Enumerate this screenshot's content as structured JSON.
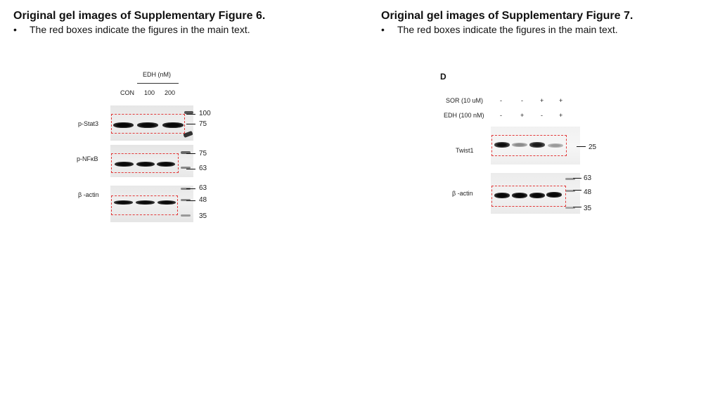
{
  "left": {
    "title": "Original gel images of Supplementary Figure 6.",
    "bullet_char": "•",
    "note": "The red boxes indicate the figures in the main text.",
    "treatment_label": "EDH (nM)",
    "lanes": [
      "CON",
      "100",
      "200"
    ],
    "blots": [
      {
        "label": "p-Stat3",
        "markers": [
          "100",
          "75"
        ]
      },
      {
        "label": "p-NFκB",
        "markers": [
          "75",
          "63"
        ]
      },
      {
        "label": "β -actin",
        "markers": [
          "63",
          "48",
          "35"
        ]
      }
    ]
  },
  "right": {
    "title": "Original gel images of Supplementary Figure 7.",
    "bullet_char": "•",
    "note": "The red boxes indicate the figures in the main text.",
    "panel_letter": "D",
    "conditions": [
      {
        "label": "SOR (10 uM)",
        "values": [
          "-",
          "-",
          "+",
          "+"
        ]
      },
      {
        "label": "EDH (100 nM)",
        "values": [
          "-",
          "+",
          "-",
          "+"
        ]
      }
    ],
    "blots": [
      {
        "label": "Twist1",
        "markers": [
          "25"
        ]
      },
      {
        "label": "β -actin",
        "markers": [
          "63",
          "48",
          "35"
        ]
      }
    ]
  },
  "colors": {
    "red_box": "#e23b3b",
    "band": "#111111",
    "membrane": "#ececec"
  }
}
